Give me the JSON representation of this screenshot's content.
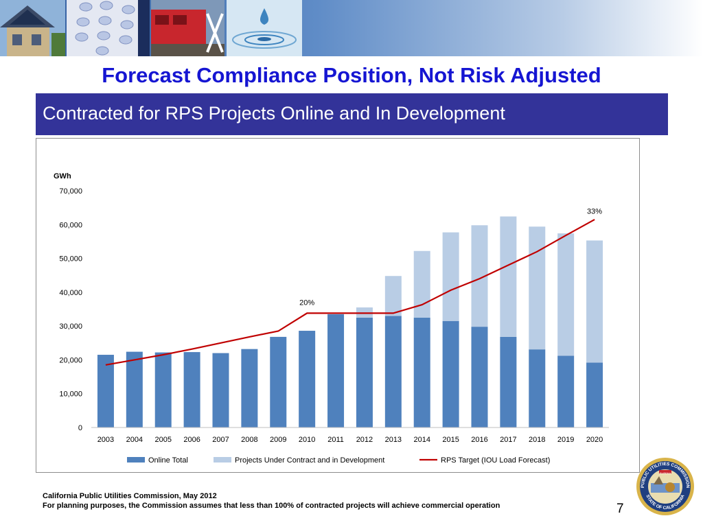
{
  "slide": {
    "title": "Forecast Compliance Position, Not Risk Adjusted",
    "subtitle": "Contracted for RPS Projects Online and In Development",
    "footer_line1": "California Public Utilities Commission, May 2012",
    "footer_line2": "For planning purposes, the Commission assumes that less than 100% of contracted projects will achieve commercial operation",
    "page_number": "7",
    "seal_label": "PUBLIC UTILITIES COMMISSION · STATE OF CALIFORNIA",
    "seal_motto": "EUREKA"
  },
  "colors": {
    "title": "#1515d2",
    "subhead_bg": "#333399",
    "online": "#4f81bd",
    "contract": "#b9cde5",
    "target": "#c00000"
  },
  "chart_data": {
    "type": "bar",
    "stacked": true,
    "ylabel": "GWh",
    "ylim": [
      0,
      70000
    ],
    "yticks": [
      "0",
      "10,000",
      "20,000",
      "30,000",
      "40,000",
      "50,000",
      "60,000",
      "70,000"
    ],
    "grid": false,
    "legend_position": "bottom",
    "categories": [
      "2003",
      "2004",
      "2005",
      "2006",
      "2007",
      "2008",
      "2009",
      "2010",
      "2011",
      "2012",
      "2013",
      "2014",
      "2015",
      "2016",
      "2017",
      "2018",
      "2019",
      "2020"
    ],
    "series": [
      {
        "name": "Online Total",
        "kind": "bar",
        "color": "#4f81bd",
        "values": [
          21500,
          22400,
          22200,
          22300,
          22000,
          23200,
          26800,
          28600,
          33500,
          32500,
          33000,
          32500,
          31500,
          29800,
          26800,
          23100,
          21200,
          19200
        ]
      },
      {
        "name": "Projects Under Contract and in Development",
        "kind": "bar",
        "color": "#b9cde5",
        "values": [
          0,
          0,
          0,
          0,
          0,
          0,
          0,
          0,
          0,
          3000,
          11800,
          19700,
          26200,
          30000,
          35600,
          36300,
          36200,
          36100
        ]
      },
      {
        "name": "RPS Target (IOU Load Forecast)",
        "kind": "line",
        "color": "#c00000",
        "values": [
          18500,
          20000,
          21500,
          23200,
          25000,
          26800,
          28500,
          33800,
          33800,
          33800,
          33800,
          36300,
          40600,
          44000,
          48000,
          52000,
          56800,
          61500
        ]
      }
    ],
    "annotations": [
      {
        "text": "20%",
        "x": "2010",
        "y": 37000
      },
      {
        "text": "33%",
        "x": "2020",
        "y": 64000
      }
    ]
  }
}
